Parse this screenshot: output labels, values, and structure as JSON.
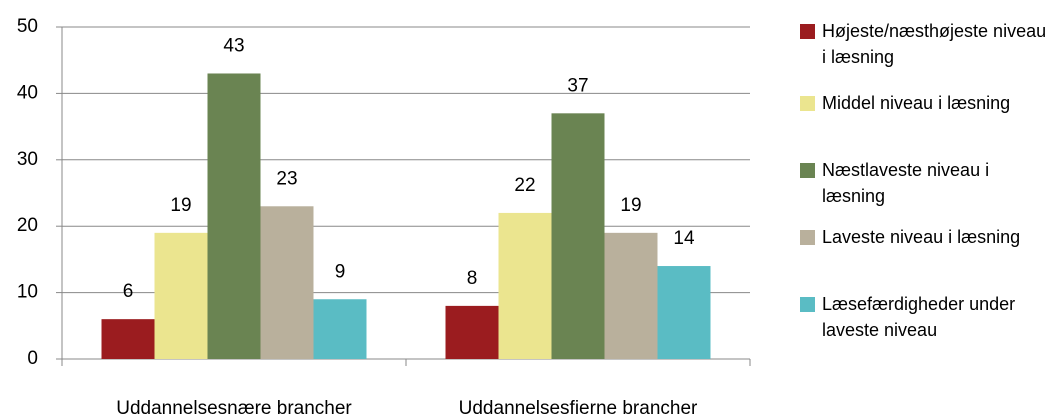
{
  "chart_data": {
    "type": "bar",
    "categories": [
      "Uddannelsesnære brancher",
      "Uddannelsesfjerne brancher"
    ],
    "series": [
      {
        "name": "Højeste/næsthøjeste niveau i læsning",
        "color": "#9b1c1f",
        "values": [
          6,
          8
        ]
      },
      {
        "name": "Middel niveau i læsning",
        "color": "#ebe58f",
        "values": [
          19,
          22
        ]
      },
      {
        "name": "Næstlaveste niveau i læsning",
        "color": "#6a8452",
        "values": [
          43,
          37
        ]
      },
      {
        "name": "Laveste niveau i læsning",
        "color": "#b9b09c",
        "values": [
          23,
          19
        ]
      },
      {
        "name": "Læsefærdigheder under laveste niveau",
        "color": "#5abcc4",
        "values": [
          9,
          14
        ]
      }
    ],
    "ylim": [
      0,
      50
    ],
    "yticks": [
      0,
      10,
      20,
      30,
      40,
      50
    ],
    "grid": true,
    "legend": "right"
  }
}
